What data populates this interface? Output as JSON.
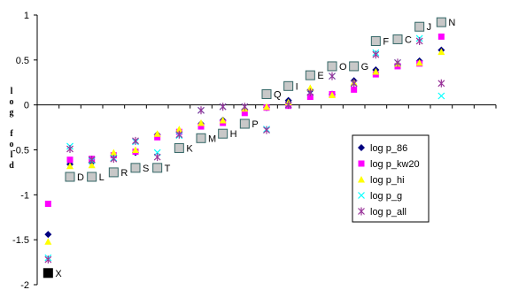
{
  "chart_data": {
    "type": "scatter",
    "title": "",
    "xlabel": "",
    "ylabel": "log fold",
    "ylim": [
      -2,
      1
    ],
    "yticks": [
      "1",
      "0.5",
      "0",
      "-0.5",
      "-1",
      "-1.5",
      "-2"
    ],
    "ytick_values": [
      1,
      0.5,
      0,
      -0.5,
      -1,
      -1.5,
      -2
    ],
    "xlim": [
      0.5,
      21.5
    ],
    "legend_position": "right-center",
    "categories": [
      "X",
      "D",
      "L",
      "R",
      "S",
      "T",
      "K",
      "M",
      "H",
      "P",
      "Q",
      "I",
      "E",
      "O",
      "G",
      "F",
      "C",
      "J",
      "N"
    ],
    "category_x": [
      1,
      2,
      3,
      4,
      5,
      6,
      7,
      8,
      9,
      10,
      11,
      12,
      13,
      14,
      15,
      16,
      17,
      18,
      19
    ],
    "category_y": [
      -1.87,
      -0.8,
      -0.8,
      -0.75,
      -0.7,
      -0.7,
      -0.48,
      -0.37,
      -0.32,
      -0.21,
      0.12,
      0.21,
      0.33,
      0.43,
      0.43,
      0.71,
      0.73,
      0.87,
      0.92
    ],
    "series": [
      {
        "name": "log p_86",
        "color": "#000080",
        "marker": "diamond",
        "x": [
          1,
          2,
          3,
          4,
          5,
          6,
          7,
          8,
          9,
          10,
          11,
          12,
          13,
          14,
          15,
          16,
          17,
          18,
          19
        ],
        "y": [
          -1.44,
          -0.66,
          -0.64,
          -0.56,
          -0.53,
          -0.33,
          -0.3,
          -0.21,
          -0.17,
          -0.06,
          -0.03,
          0.05,
          0.16,
          0.12,
          0.27,
          0.39,
          0.45,
          0.49,
          0.61
        ]
      },
      {
        "name": "log p_kw20",
        "color": "#ff00ff",
        "marker": "square",
        "x": [
          1,
          2,
          3,
          4,
          5,
          6,
          7,
          8,
          9,
          10,
          11,
          12,
          13,
          14,
          15,
          16,
          17,
          18,
          19
        ],
        "y": [
          -1.1,
          -0.61,
          -0.6,
          -0.56,
          -0.52,
          -0.36,
          -0.3,
          -0.24,
          -0.2,
          -0.09,
          -0.03,
          -0.01,
          0.09,
          0.12,
          0.17,
          0.34,
          0.43,
          0.46,
          0.76
        ]
      },
      {
        "name": "log p_hi",
        "color": "#ffff00",
        "marker": "triangle",
        "x": [
          1,
          2,
          3,
          4,
          5,
          6,
          7,
          8,
          9,
          10,
          11,
          12,
          13,
          14,
          15,
          16,
          17,
          18,
          19
        ],
        "y": [
          -1.52,
          -0.68,
          -0.67,
          -0.53,
          -0.5,
          -0.32,
          -0.27,
          -0.2,
          -0.17,
          -0.04,
          -0.02,
          0.03,
          0.19,
          0.11,
          0.25,
          0.37,
          0.46,
          0.47,
          0.59
        ]
      },
      {
        "name": "log p_g",
        "color": "#00ffff",
        "marker": "x",
        "x": [
          1,
          2,
          3,
          4,
          5,
          6,
          7,
          8,
          9,
          10,
          11,
          12,
          13,
          14,
          15,
          16,
          17,
          18,
          19
        ],
        "y": [
          -1.7,
          -0.46,
          -0.62,
          -0.59,
          -0.41,
          -0.53,
          -0.34,
          -0.06,
          -0.02,
          -0.02,
          -0.27,
          0.0,
          0.14,
          0.32,
          0.24,
          0.58,
          0.47,
          0.74,
          0.1
        ]
      },
      {
        "name": "log p_all",
        "color": "#993399",
        "marker": "star",
        "x": [
          1,
          2,
          3,
          4,
          5,
          6,
          7,
          8,
          9,
          10,
          11,
          12,
          13,
          14,
          15,
          16,
          17,
          18,
          19
        ],
        "y": [
          -1.72,
          -0.49,
          -0.61,
          -0.6,
          -0.4,
          -0.58,
          -0.33,
          -0.06,
          -0.02,
          -0.02,
          -0.28,
          0.0,
          0.14,
          0.32,
          0.24,
          0.56,
          0.47,
          0.71,
          0.24
        ]
      }
    ],
    "grid": false
  }
}
